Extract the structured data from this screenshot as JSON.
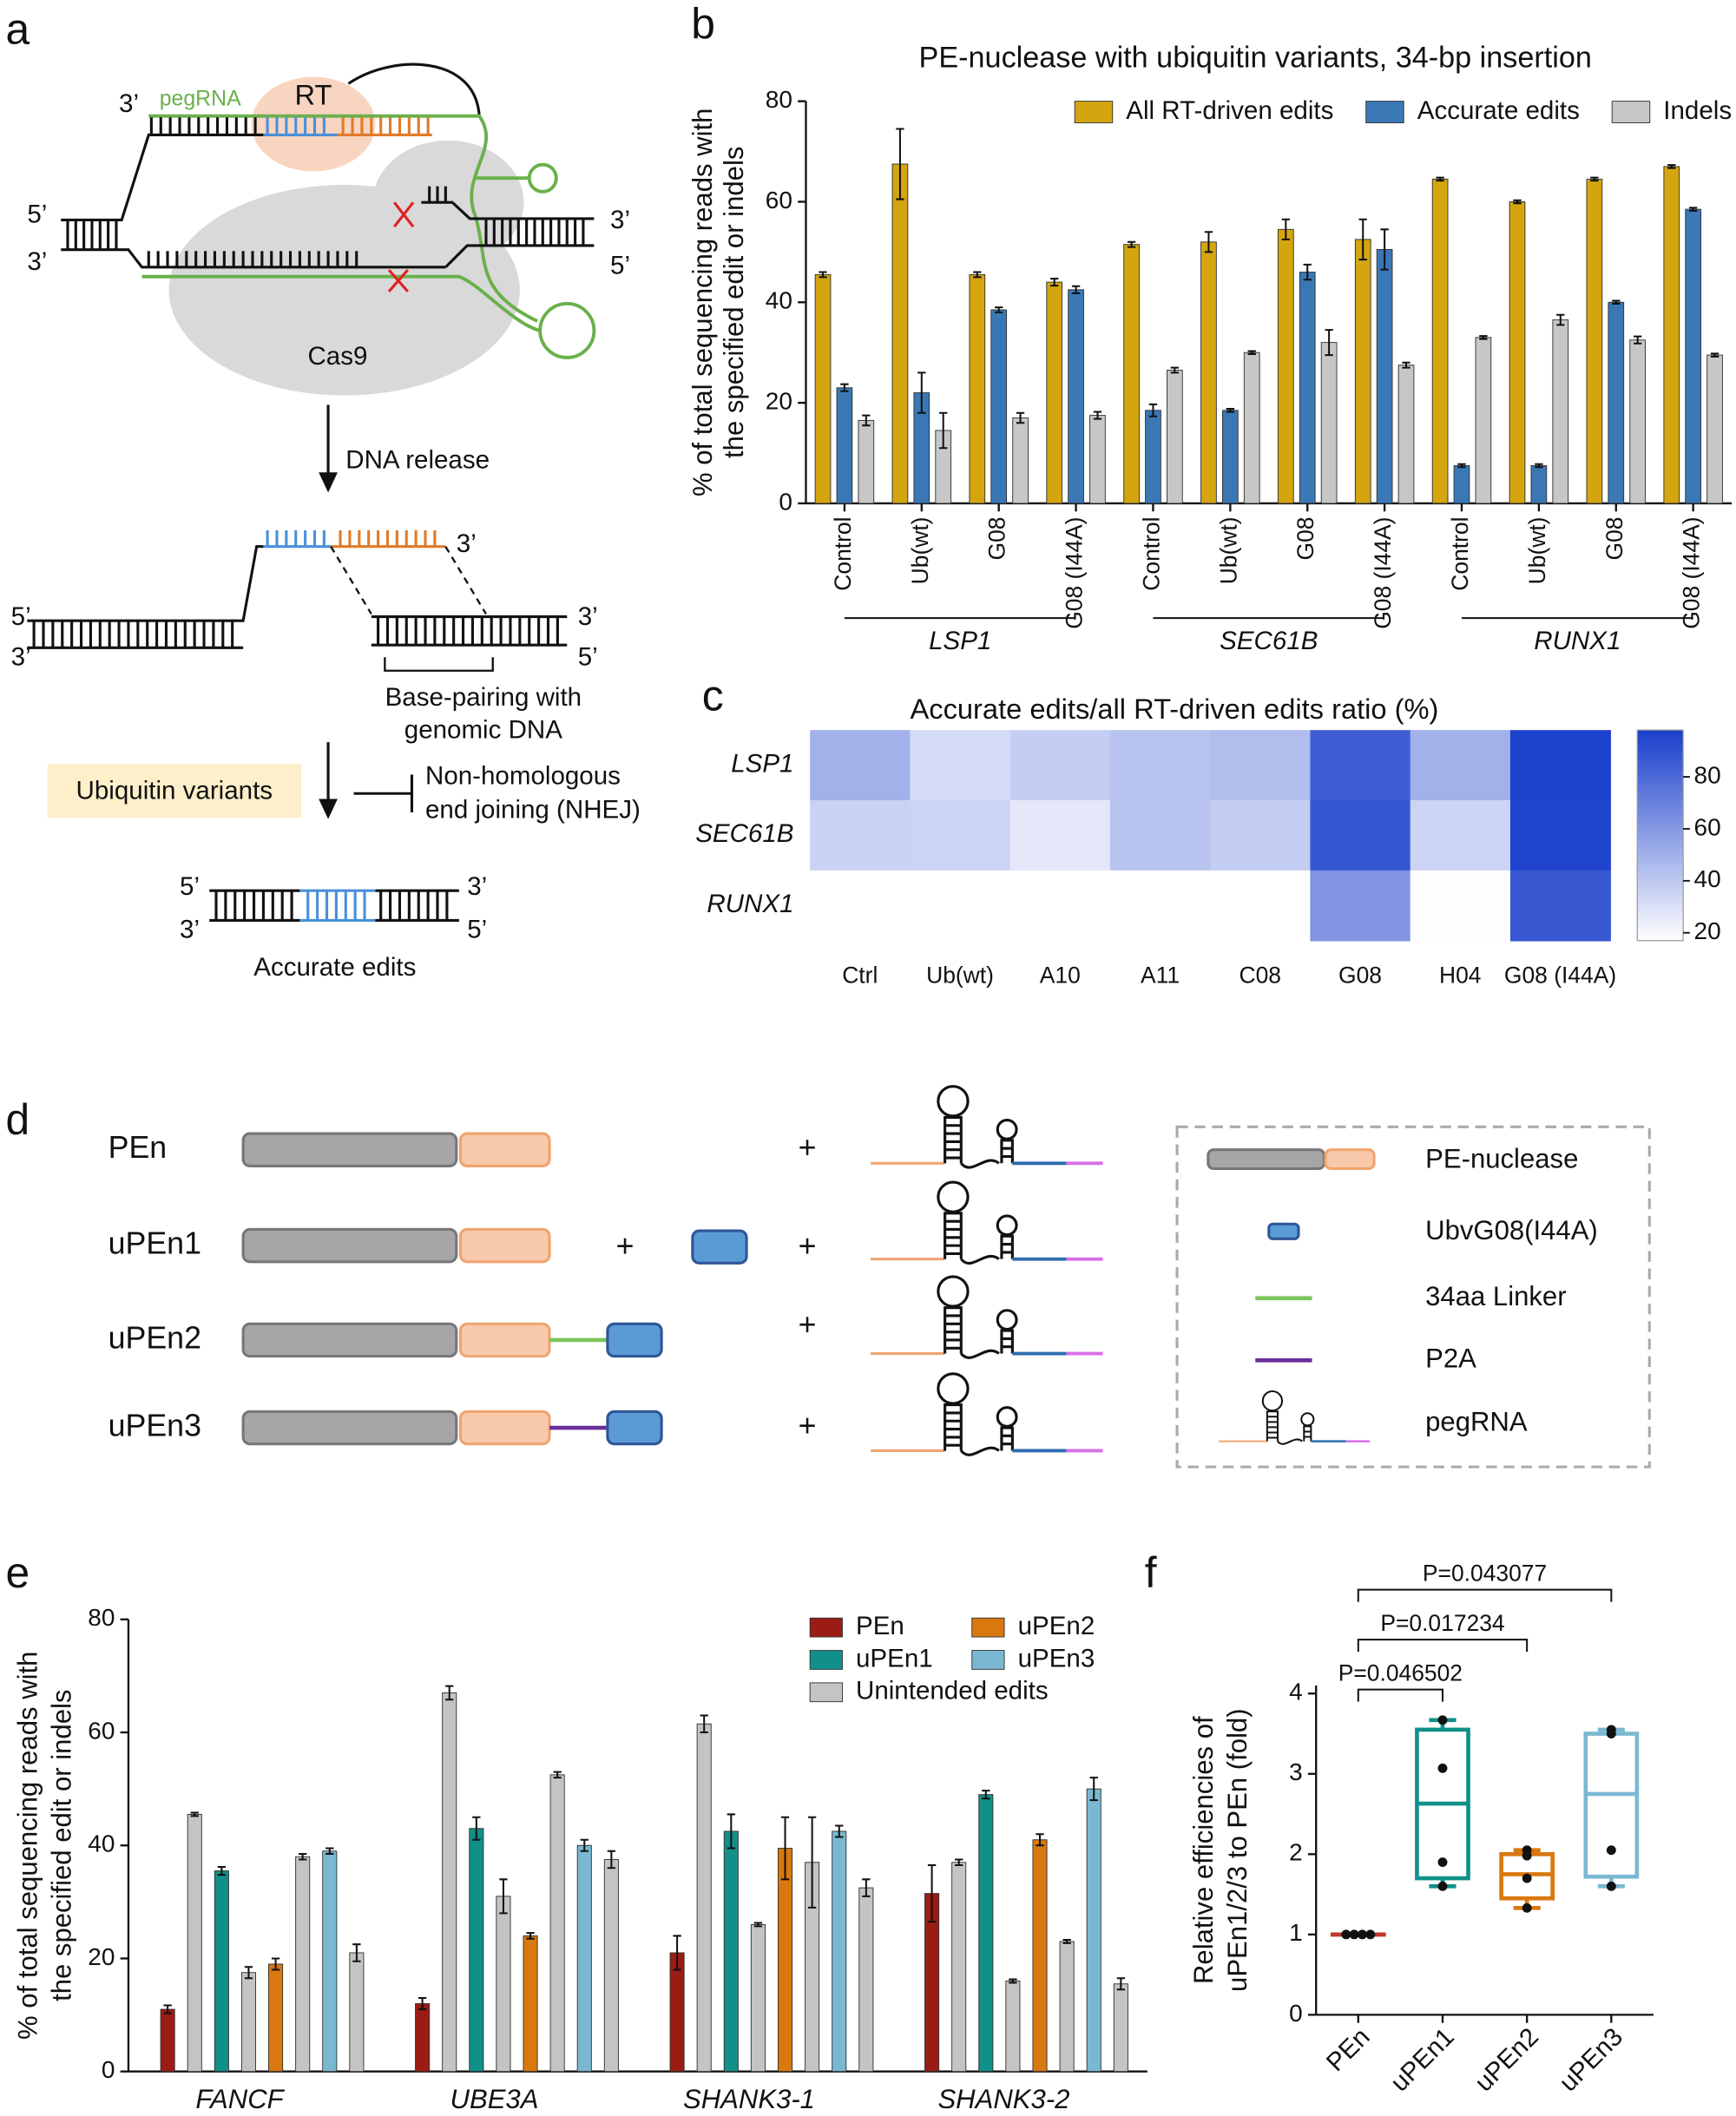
{
  "panel_labels": [
    "a",
    "b",
    "c",
    "d",
    "e",
    "f"
  ],
  "diagram_a": {
    "three_prime": "3’",
    "five_prime": "5’",
    "pegrna": "pegRNA",
    "rt": "RT",
    "cas9": "Cas9",
    "step": "DNA release",
    "pairing": [
      "Base-pairing with",
      "genomic DNA"
    ],
    "variants": "Ubiquitin variants",
    "nhej": [
      "Non-homologous",
      "end joining (NHEJ)"
    ],
    "result": "Accurate edits"
  },
  "diagram_d": {
    "constructs": [
      "PEn",
      "uPEn1",
      "uPEn2",
      "uPEn3"
    ],
    "plus": "+",
    "legend": [
      "PE-nuclease",
      "UbvG08(I44A)",
      "34aa Linker",
      "P2A",
      "pegRNA"
    ]
  },
  "chart_data": [
    {
      "type": "bar",
      "title": "PE-nuclease with ubiquitin variants, 34-bp insertion",
      "ylabel": [
        "% of total sequencing reads with",
        "the specified edit or indels"
      ],
      "categories": [
        "Control",
        "Ub(wt)",
        "G08",
        "G08 (I44A)",
        "Control",
        "Ub(wt)",
        "G08",
        "G08 (I44A)",
        "Control",
        "Ub(wt)",
        "G08",
        "G08 (I44A)"
      ],
      "group_labels": [
        "LSP1",
        "SEC61B",
        "RUNX1"
      ],
      "series": [
        {
          "name": "All RT-driven edits",
          "color": "#d4a50e",
          "values": [
            45.5,
            67.5,
            45.5,
            44,
            51.5,
            52,
            54.5,
            52.5,
            64.5,
            60,
            64.5,
            67
          ],
          "errors": [
            0.5,
            7,
            0.5,
            0.7,
            0.5,
            2,
            2,
            4,
            0.3,
            0.3,
            0.3,
            0.3
          ]
        },
        {
          "name": "Accurate edits",
          "color": "#3a78b5",
          "values": [
            23,
            22,
            38.5,
            42.5,
            18.5,
            18.5,
            46,
            50.5,
            7.5,
            7.5,
            40,
            58.5
          ],
          "errors": [
            0.7,
            4,
            0.5,
            0.7,
            1.2,
            0.3,
            1.5,
            4,
            0.3,
            0.3,
            0.3,
            0.3
          ]
        },
        {
          "name": "Indels",
          "color": "#c7c7c7",
          "values": [
            16.5,
            14.5,
            17,
            17.5,
            26.5,
            30,
            32,
            27.5,
            33,
            36.5,
            32.5,
            29.5
          ],
          "errors": [
            1,
            3.5,
            1,
            0.7,
            0.5,
            0.3,
            2.5,
            0.5,
            0.3,
            1,
            0.7,
            0.3
          ]
        }
      ],
      "ylim": [
        0,
        80
      ],
      "yticks": [
        0,
        20,
        40,
        60,
        80
      ],
      "legend": "top-right"
    },
    {
      "type": "heatmap",
      "title": "Accurate edits/all RT-driven edits ratio (%)",
      "rows": [
        "LSP1",
        "SEC61B",
        "RUNX1"
      ],
      "categories": [
        "Ctrl",
        "Ub(wt)",
        "A10",
        "A11",
        "C08",
        "G08",
        "H04",
        "G08 (I44A)"
      ],
      "values": [
        [
          50,
          32,
          38,
          42,
          45,
          85,
          50,
          97
        ],
        [
          36,
          35,
          27,
          42,
          38,
          88,
          35,
          96
        ],
        [
          15,
          16,
          15,
          13,
          14,
          62,
          18,
          87
        ]
      ],
      "colors": [
        "#ffffff",
        "#1a3fcc"
      ],
      "zlim": [
        17,
        98
      ],
      "zticks": [
        20,
        40,
        60,
        80
      ]
    },
    {
      "type": "bar",
      "ylabel": [
        "% of total sequencing reads with",
        "the specified edit or indels"
      ],
      "categories": [
        "FANCF",
        "UBE3A",
        "SHANK3-1",
        "SHANK3-2"
      ],
      "series": [
        {
          "name": "PEn",
          "color": "#9b1c14",
          "values": [
            11,
            12,
            21,
            31.5
          ],
          "errors": [
            0.7,
            1,
            3,
            5
          ]
        },
        {
          "name": "uPEn1",
          "color": "#11908a",
          "values": [
            35.5,
            43,
            42.5,
            49
          ],
          "errors": [
            0.7,
            2,
            3,
            0.7
          ]
        },
        {
          "name": "uPEn2",
          "color": "#d9780e",
          "values": [
            19,
            24,
            39.5,
            41
          ],
          "errors": [
            1,
            0.5,
            5.5,
            1
          ]
        },
        {
          "name": "uPEn3",
          "color": "#7ab8d2",
          "values": [
            39,
            40,
            42.5,
            50
          ],
          "errors": [
            0.5,
            1,
            1,
            2
          ]
        },
        {
          "name": "Unintended edits",
          "color": "#c4c4c4",
          "values": [
            [
              45.5,
              17.5,
              38,
              21
            ],
            [
              67,
              31,
              52.5,
              37.5
            ],
            [
              61.5,
              26,
              37,
              32.5
            ],
            [
              37,
              16,
              23,
              15.5
            ]
          ],
          "errors": [
            [
              0.3,
              1,
              0.5,
              1.5
            ],
            [
              1.2,
              3,
              0.5,
              1.5
            ],
            [
              1.5,
              0.3,
              8,
              1.5
            ],
            [
              0.5,
              0.3,
              0.3,
              1
            ]
          ]
        }
      ],
      "ylim": [
        0,
        80
      ],
      "yticks": [
        0,
        20,
        40,
        60,
        80
      ],
      "legend": "top-right"
    },
    {
      "type": "box",
      "ylabel": [
        "Relative efficiencies of",
        "uPEn1/2/3 to PEn (fold)"
      ],
      "categories": [
        "PEn",
        "uPEn1",
        "uPEn2",
        "uPEn3"
      ],
      "colors": [
        "#c0392b",
        "#11908a",
        "#d9780e",
        "#7ab8d2"
      ],
      "boxes": [
        {
          "min": 1,
          "q1": 1,
          "median": 1,
          "q3": 1,
          "max": 1,
          "points": [
            1,
            1,
            1,
            1
          ]
        },
        {
          "min": 1.6,
          "q1": 1.7,
          "median": 2.63,
          "q3": 3.55,
          "max": 3.67,
          "points": [
            3.67,
            3.07,
            1.9,
            1.6
          ]
        },
        {
          "min": 1.33,
          "q1": 1.45,
          "median": 1.75,
          "q3": 2,
          "max": 2.05,
          "points": [
            2.05,
            1.98,
            1.7,
            1.33
          ]
        },
        {
          "min": 1.6,
          "q1": 1.72,
          "median": 2.75,
          "q3": 3.5,
          "max": 3.55,
          "points": [
            3.55,
            3.5,
            2.05,
            1.6
          ]
        }
      ],
      "ylim": [
        0,
        4.1
      ],
      "yticks": [
        0,
        1,
        2,
        3,
        4
      ],
      "comparisons": [
        {
          "from": "PEn",
          "to": "uPEn1",
          "label": "P=0.046502"
        },
        {
          "from": "PEn",
          "to": "uPEn2",
          "label": "P=0.017234"
        },
        {
          "from": "PEn",
          "to": "uPEn3",
          "label": "P=0.043077"
        }
      ]
    }
  ]
}
